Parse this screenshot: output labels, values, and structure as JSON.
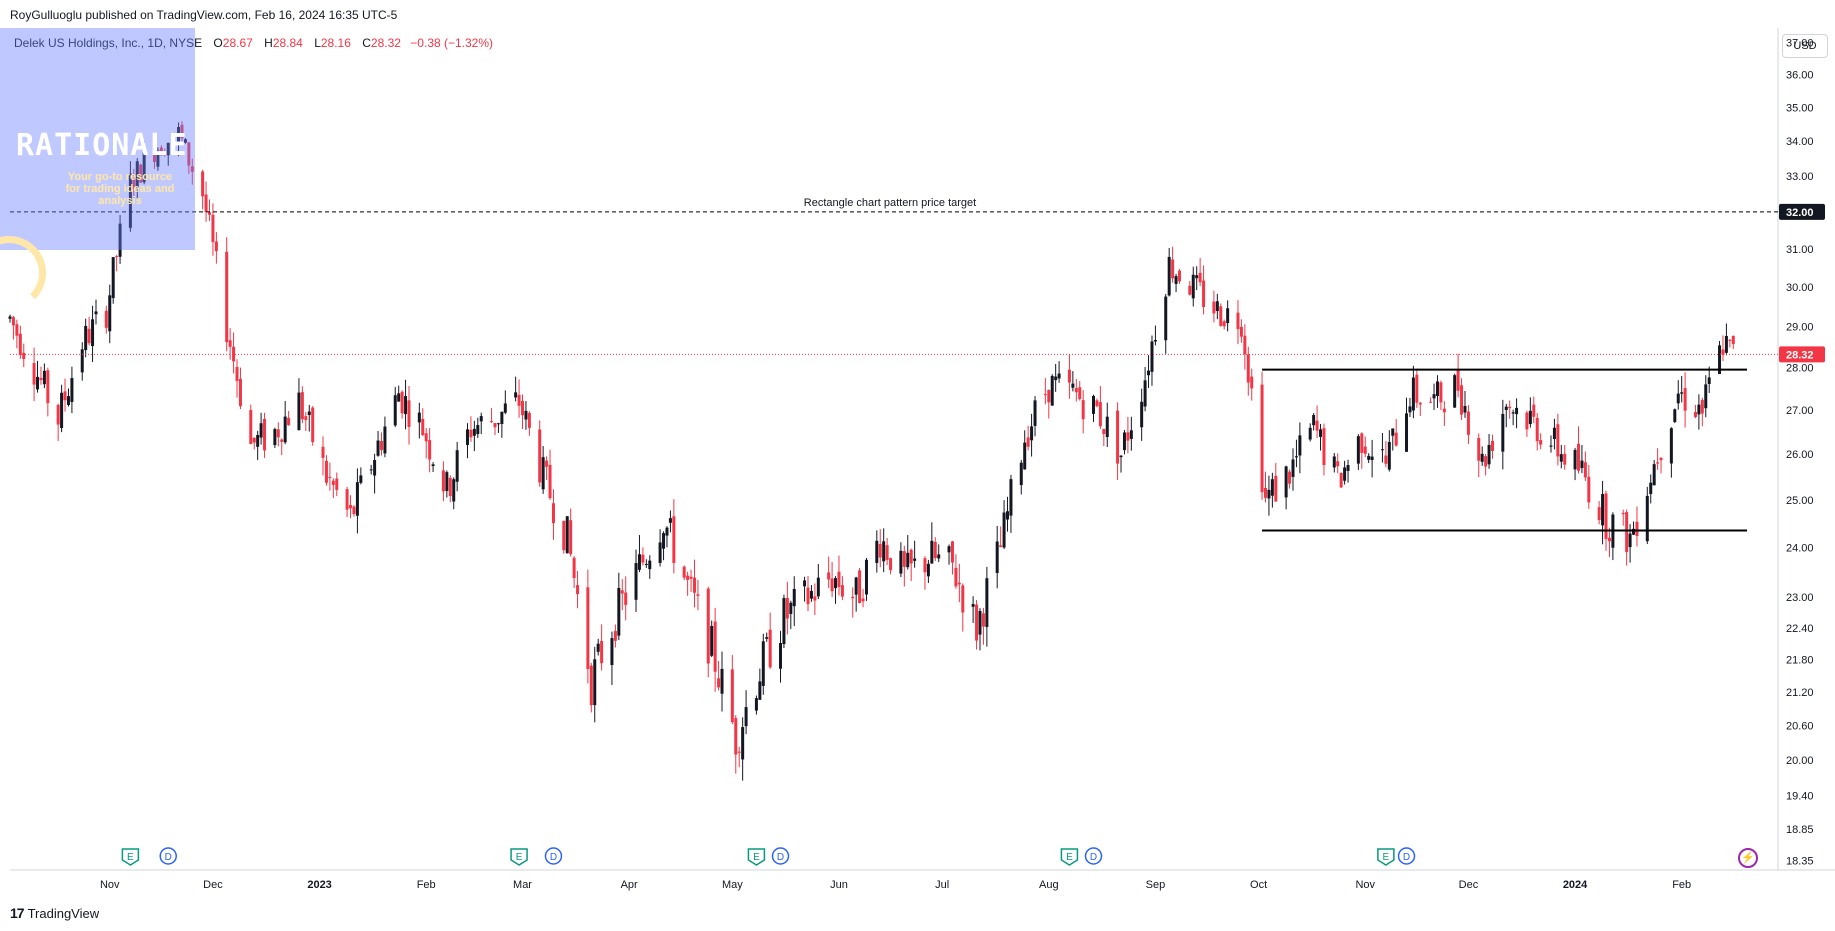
{
  "header": {
    "published": "RoyGulluoglu published on TradingView.com, Feb 16, 2024 16:35 UTC-5",
    "symbol_name": "Delek US Holdings, Inc., 1D, NYSE",
    "open_label": "O",
    "open": "28.67",
    "high_label": "H",
    "high": "28.84",
    "low_label": "L",
    "low": "28.16",
    "close_label": "C",
    "close": "28.32",
    "change": "−0.38 (−1.32%)",
    "currency": "USD"
  },
  "logo": {
    "text": "RATIONALE",
    "tagline": "Your go-to resource for trading ideas and analysis"
  },
  "footer": {
    "brand": "TradingView",
    "brand_icon": "tradingview-logo-icon"
  },
  "colors": {
    "up": "#131722",
    "down": "#f23645",
    "event_green": "#089981",
    "event_blue": "#2962ff",
    "flash": "#9c27b0",
    "grid_bg": "#ffffff"
  },
  "chart_data": {
    "type": "candlestick",
    "title": "",
    "xlabel": "",
    "ylabel": "",
    "y_scale": "log",
    "ylim": [
      18.2,
      37.4
    ],
    "y_ticks": [
      18.35,
      18.85,
      19.4,
      20.0,
      20.6,
      21.2,
      21.8,
      22.4,
      23.0,
      24.0,
      25.0,
      26.0,
      27.0,
      28.0,
      29.0,
      30.0,
      31.0,
      32.0,
      33.0,
      34.0,
      35.0,
      36.0,
      37.0
    ],
    "x_ticks": [
      "Nov",
      "Dec",
      "2023",
      "Feb",
      "Mar",
      "Apr",
      "May",
      "Jun",
      "Jul",
      "Aug",
      "Sep",
      "Oct",
      "Nov",
      "Dec",
      "2024",
      "Feb"
    ],
    "x_ticks_bold": [
      "2023",
      "2024"
    ],
    "x_range": [
      "2022-10-03",
      "2024-02-29"
    ],
    "x_tick_dates": [
      "2022-11-01",
      "2022-12-01",
      "2023-01-01",
      "2023-02-01",
      "2023-03-01",
      "2023-04-01",
      "2023-05-01",
      "2023-06-01",
      "2023-07-01",
      "2023-08-01",
      "2023-09-01",
      "2023-10-01",
      "2023-11-01",
      "2023-12-01",
      "2024-01-01",
      "2024-02-01"
    ],
    "last_price": 28.32,
    "price_path": [
      [
        "2022-10-03",
        29.2
      ],
      [
        "2022-10-10",
        28.0
      ],
      [
        "2022-10-17",
        26.8
      ],
      [
        "2022-10-24",
        28.6
      ],
      [
        "2022-10-31",
        29.4
      ],
      [
        "2022-11-07",
        32.8
      ],
      [
        "2022-11-14",
        33.8
      ],
      [
        "2022-11-21",
        34.2
      ],
      [
        "2022-11-28",
        32.5
      ],
      [
        "2022-12-05",
        29.0
      ],
      [
        "2022-12-12",
        26.2
      ],
      [
        "2022-12-19",
        26.5
      ],
      [
        "2022-12-26",
        27.2
      ],
      [
        "2023-01-03",
        25.5
      ],
      [
        "2023-01-10",
        24.6
      ],
      [
        "2023-01-17",
        26.0
      ],
      [
        "2023-01-24",
        27.4
      ],
      [
        "2023-01-31",
        26.6
      ],
      [
        "2023-02-07",
        25.2
      ],
      [
        "2023-02-14",
        26.6
      ],
      [
        "2023-02-21",
        26.8
      ],
      [
        "2023-02-28",
        27.2
      ],
      [
        "2023-03-07",
        25.5
      ],
      [
        "2023-03-14",
        24.2
      ],
      [
        "2023-03-21",
        21.4
      ],
      [
        "2023-03-28",
        22.6
      ],
      [
        "2023-04-04",
        23.6
      ],
      [
        "2023-04-11",
        24.6
      ],
      [
        "2023-04-18",
        23.2
      ],
      [
        "2023-04-25",
        22.0
      ],
      [
        "2023-05-02",
        20.4
      ],
      [
        "2023-05-09",
        21.6
      ],
      [
        "2023-05-16",
        22.6
      ],
      [
        "2023-05-23",
        23.0
      ],
      [
        "2023-05-30",
        23.4
      ],
      [
        "2023-06-06",
        23.0
      ],
      [
        "2023-06-13",
        24.2
      ],
      [
        "2023-06-20",
        23.4
      ],
      [
        "2023-06-27",
        23.8
      ],
      [
        "2023-07-04",
        23.6
      ],
      [
        "2023-07-11",
        22.4
      ],
      [
        "2023-07-18",
        24.0
      ],
      [
        "2023-07-25",
        26.4
      ],
      [
        "2023-08-01",
        27.6
      ],
      [
        "2023-08-08",
        27.4
      ],
      [
        "2023-08-15",
        27.0
      ],
      [
        "2023-08-22",
        26.0
      ],
      [
        "2023-08-29",
        27.8
      ],
      [
        "2023-09-05",
        30.6
      ],
      [
        "2023-09-12",
        30.0
      ],
      [
        "2023-09-19",
        29.4
      ],
      [
        "2023-09-26",
        29.2
      ],
      [
        "2023-10-03",
        25.0
      ],
      [
        "2023-10-10",
        25.6
      ],
      [
        "2023-10-17",
        26.6
      ],
      [
        "2023-10-24",
        25.4
      ],
      [
        "2023-10-31",
        26.4
      ],
      [
        "2023-11-07",
        25.8
      ],
      [
        "2023-11-14",
        27.4
      ],
      [
        "2023-11-21",
        27.2
      ],
      [
        "2023-11-28",
        27.6
      ],
      [
        "2023-12-05",
        25.8
      ],
      [
        "2023-12-12",
        27.2
      ],
      [
        "2023-12-19",
        26.8
      ],
      [
        "2023-12-26",
        26.2
      ],
      [
        "2024-01-03",
        25.6
      ],
      [
        "2024-01-10",
        24.6
      ],
      [
        "2024-01-17",
        24.2
      ],
      [
        "2024-01-24",
        25.8
      ],
      [
        "2024-01-31",
        27.4
      ],
      [
        "2024-02-07",
        27.0
      ],
      [
        "2024-02-13",
        28.6
      ],
      [
        "2024-02-16",
        28.32
      ]
    ],
    "horizontal_lines": [
      {
        "price": 32.0,
        "style": "dashed",
        "from": "2022-10-03",
        "to": "2024-02-29",
        "label": "Rectangle chart pattern price target",
        "axis_label": "32.00"
      },
      {
        "price": 27.95,
        "style": "solid",
        "from": "2023-10-02",
        "to": "2024-02-20"
      },
      {
        "price": 24.35,
        "style": "solid",
        "from": "2023-10-02",
        "to": "2024-02-20"
      },
      {
        "price": 28.32,
        "style": "dotted",
        "from": "2022-10-03",
        "to": "2024-02-29",
        "axis_label": "28.32"
      }
    ],
    "events": [
      {
        "type": "E",
        "date": "2022-11-07"
      },
      {
        "type": "D",
        "date": "2022-11-18"
      },
      {
        "type": "E",
        "date": "2023-02-28"
      },
      {
        "type": "D",
        "date": "2023-03-10"
      },
      {
        "type": "E",
        "date": "2023-05-08"
      },
      {
        "type": "D",
        "date": "2023-05-15"
      },
      {
        "type": "E",
        "date": "2023-08-07"
      },
      {
        "type": "D",
        "date": "2023-08-14"
      },
      {
        "type": "E",
        "date": "2023-11-07"
      },
      {
        "type": "D",
        "date": "2023-11-13"
      }
    ],
    "grid": false,
    "legend": "top-left"
  }
}
